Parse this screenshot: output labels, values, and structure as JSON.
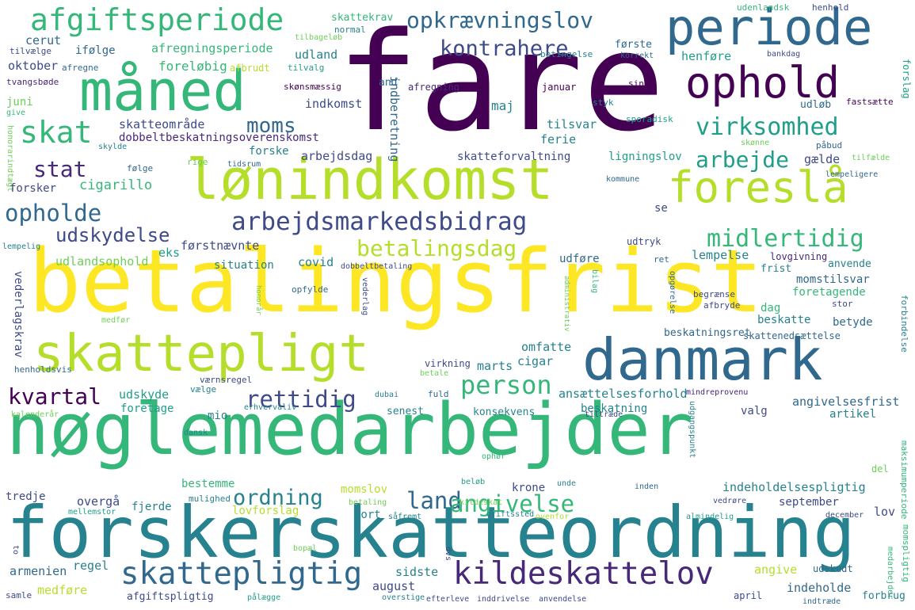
{
  "palette": {
    "dark_purple": "#440154",
    "purple": "#482878",
    "indigo": "#3e4a89",
    "blue": "#31688e",
    "teal": "#26828e",
    "sea": "#1f9e89",
    "green": "#35b779",
    "lime": "#6ece58",
    "yellow_green": "#b5de2b",
    "yellow": "#fde725"
  },
  "words": {
    "fare": "fare",
    "betalingsfrist": "betalingsfrist",
    "noeglemedarbejder": "nøglemedarbejder",
    "forskerskatteordning": "forskerskatteordning",
    "loenindkomst": "lønindkomst",
    "danmark": "danmark",
    "skattepligt": "skattepligt",
    "maaned": "måned",
    "periode": "periode",
    "ophold": "ophold",
    "foreslaa": "foreslå",
    "afgiftsperiode": "afgiftsperiode",
    "arbejdsmarkedsbidrag": "arbejdsmarkedsbidrag",
    "skattepligtig": "skattepligtig",
    "kildeskattelov": "kildeskattelov",
    "opkraevningslov": "opkrævningslov",
    "kontrahere": "kontrahere",
    "skat": "skat",
    "virksomhed": "virksomhed",
    "moms": "moms",
    "stat": "stat",
    "arbejde": "arbejde",
    "opholde": "opholde",
    "midlertidig": "midlertidig",
    "udskydelse": "udskydelse",
    "betalingsdag": "betalingsdag",
    "person": "person",
    "kvartal": "kvartal",
    "rettidig": "rettidig",
    "ordning": "ordning",
    "land": "land",
    "angivelse": "angivelse",
    "skattekrav": "skattekrav",
    "afregningsperiode": "afregningsperiode",
    "foreloebig": "foreløbig",
    "udland": "udland",
    "skatteomraade": "skatteområde",
    "dobbeltbeskatningsoverenskomst": "dobbeltbeskatningsoverenskomst",
    "skatteforvaltning": "skatteforvaltning",
    "ligningslov": "ligningslov",
    "indkomst": "indkomst",
    "tilsvar": "tilsvar",
    "ferie": "ferie",
    "arbejdsdag": "arbejdsdag",
    "forske": "forske",
    "forsker": "forsker",
    "cigarillo": "cigarillo",
    "foerstnaevnte": "førstnævnte",
    "situation": "situation",
    "covid": "covid",
    "udfoere": "udføre",
    "lempelse": "lempelse",
    "anvende": "anvende",
    "momstilsvar": "momstilsvar",
    "foretagende": "foretagende",
    "udlandsophold": "udlandsophold",
    "vederlagskrav": "vederlagskrav",
    "dag": "dag",
    "beskatte": "beskatte",
    "betyde": "betyde",
    "omfatte": "omfatte",
    "cigar": "cigar",
    "marts": "marts",
    "ansaettelsesforhold": "ansættelsesforhold",
    "angivelsesfrist": "angivelsesfrist",
    "beskatning": "beskatning",
    "artikel": "artikel",
    "udskyde": "udskyde",
    "foretage": "foretage",
    "mio": "mio",
    "senest": "senest",
    "konsekvens": "konsekvens",
    "valg": "valg",
    "bestemme": "bestemme",
    "indeholdelsespligtig": "indeholdelsespligtig",
    "krone": "krone",
    "tredje": "tredje",
    "overgaa": "overgå",
    "fjerde": "fjerde",
    "lovforslag": "lovforslag",
    "momslov": "momslov",
    "bort": "bort",
    "september": "september",
    "lov": "lov",
    "regel": "regel",
    "august": "august",
    "sidste": "sidste",
    "angive": "angive",
    "indeholde": "indeholde",
    "medfoere": "medføre",
    "afgiftspligtig": "afgiftspligtig",
    "armenien": "armenien",
    "april": "april",
    "forbrug": "forbrug",
    "oktober": "oktober",
    "juni": "juni",
    "give": "give",
    "tvangsboede": "tvangsbøde",
    "tilvaelge": "tilvælge",
    "cerut": "cerut",
    "ifoelge": "ifølge",
    "afregne": "afregne",
    "normal": "normal",
    "tilbageloeb": "tilbageløb",
    "afbrudt": "afbrudt",
    "tilvalg": "tilvalg",
    "betingelse": "betingelse",
    "foerste": "første",
    "korrekt": "korrekt",
    "henfoere": "henføre",
    "udenlandsk": "udenlandsk",
    "henhold": "henhold",
    "bankdag": "bankdag",
    "skoensmaessig": "skønsmæssig",
    "and": "and",
    "afregning": "afregning",
    "indberetning": "indberetning",
    "maj": "maj",
    "januar": "januar",
    "sin": "sin",
    "styk": "styk",
    "udloeb": "udløb",
    "fastsaette": "fastsætte",
    "forslag": "forslag",
    "sporadisk": "sporadisk",
    "skoenne": "skønne",
    "paabud": "påbud",
    "gaelde": "gælde",
    "tilfaelde": "tilfælde",
    "lempeligere": "lempeligere",
    "kommune": "kommune",
    "honorarindtaegt": "honorarindtægt",
    "skylde": "skylde",
    "foelge": "følge",
    "rige": "rige",
    "tidsrum": "tidsrum",
    "lempelig": "lempelig",
    "eks": "eks",
    "udtryk": "udtryk",
    "lovgivning": "lovgivning",
    "ret": "ret",
    "frist": "frist",
    "dobbeltbetaling": "dobbeltbetaling",
    "honoraar": "honorår",
    "opfylde": "opfylde",
    "vederlag": "vederlag",
    "administrativ": "administrativ",
    "bilag": "bilag",
    "opgoerelse": "opgørelse",
    "begraense": "begrænse",
    "afbryde": "afbryde",
    "stor": "stor",
    "forbindelse": "forbindelse",
    "medfoer": "medfør",
    "henholdsvis": "henholdsvis",
    "vaernsregel": "værnsregel",
    "virkning": "virkning",
    "betale": "betale",
    "beskatningsret": "beskatningsret",
    "skattenedsaettelse": "skattenedsættelse",
    "vaelge": "vælge",
    "dubai": "dubai",
    "fuld": "fuld",
    "mindreprovenu": "mindreprovenu",
    "kalenderaar": "kalenderår",
    "erhvervaliv": "erhvervaliv",
    "tiltraede": "tiltræde",
    "udgangspunkt": "udgangspunkt",
    "dansk": "dansk",
    "ophoer": "ophør",
    "maksimumperiode": "maksimumperiode",
    "del": "del",
    "mulighed": "mulighed",
    "unde": "unde",
    "inden": "inden",
    "mellemstor": "mellemstor",
    "betaling": "betaling",
    "kildeskat": "kildeskat",
    "beloeb": "beløb",
    "vedroere": "vedrøre",
    "saafremt": "såfremt",
    "driftssted": "driftssted",
    "ovenfor": "ovenfor",
    "almindelig": "almindelig",
    "december": "december",
    "to": "to",
    "bopael": "bopæl",
    "dvs": "dvs",
    "momspligtig": "momspligtig",
    "udskudt": "udskudt",
    "medarbejder": "medarbejder",
    "samle": "samle",
    "paalaegge": "pålægge",
    "overstige": "overstige",
    "efterleve": "efterleve",
    "inddrivelse": "inddrivelse",
    "anvendelse": "anvendelse",
    "indtraede": "indtræde"
  }
}
